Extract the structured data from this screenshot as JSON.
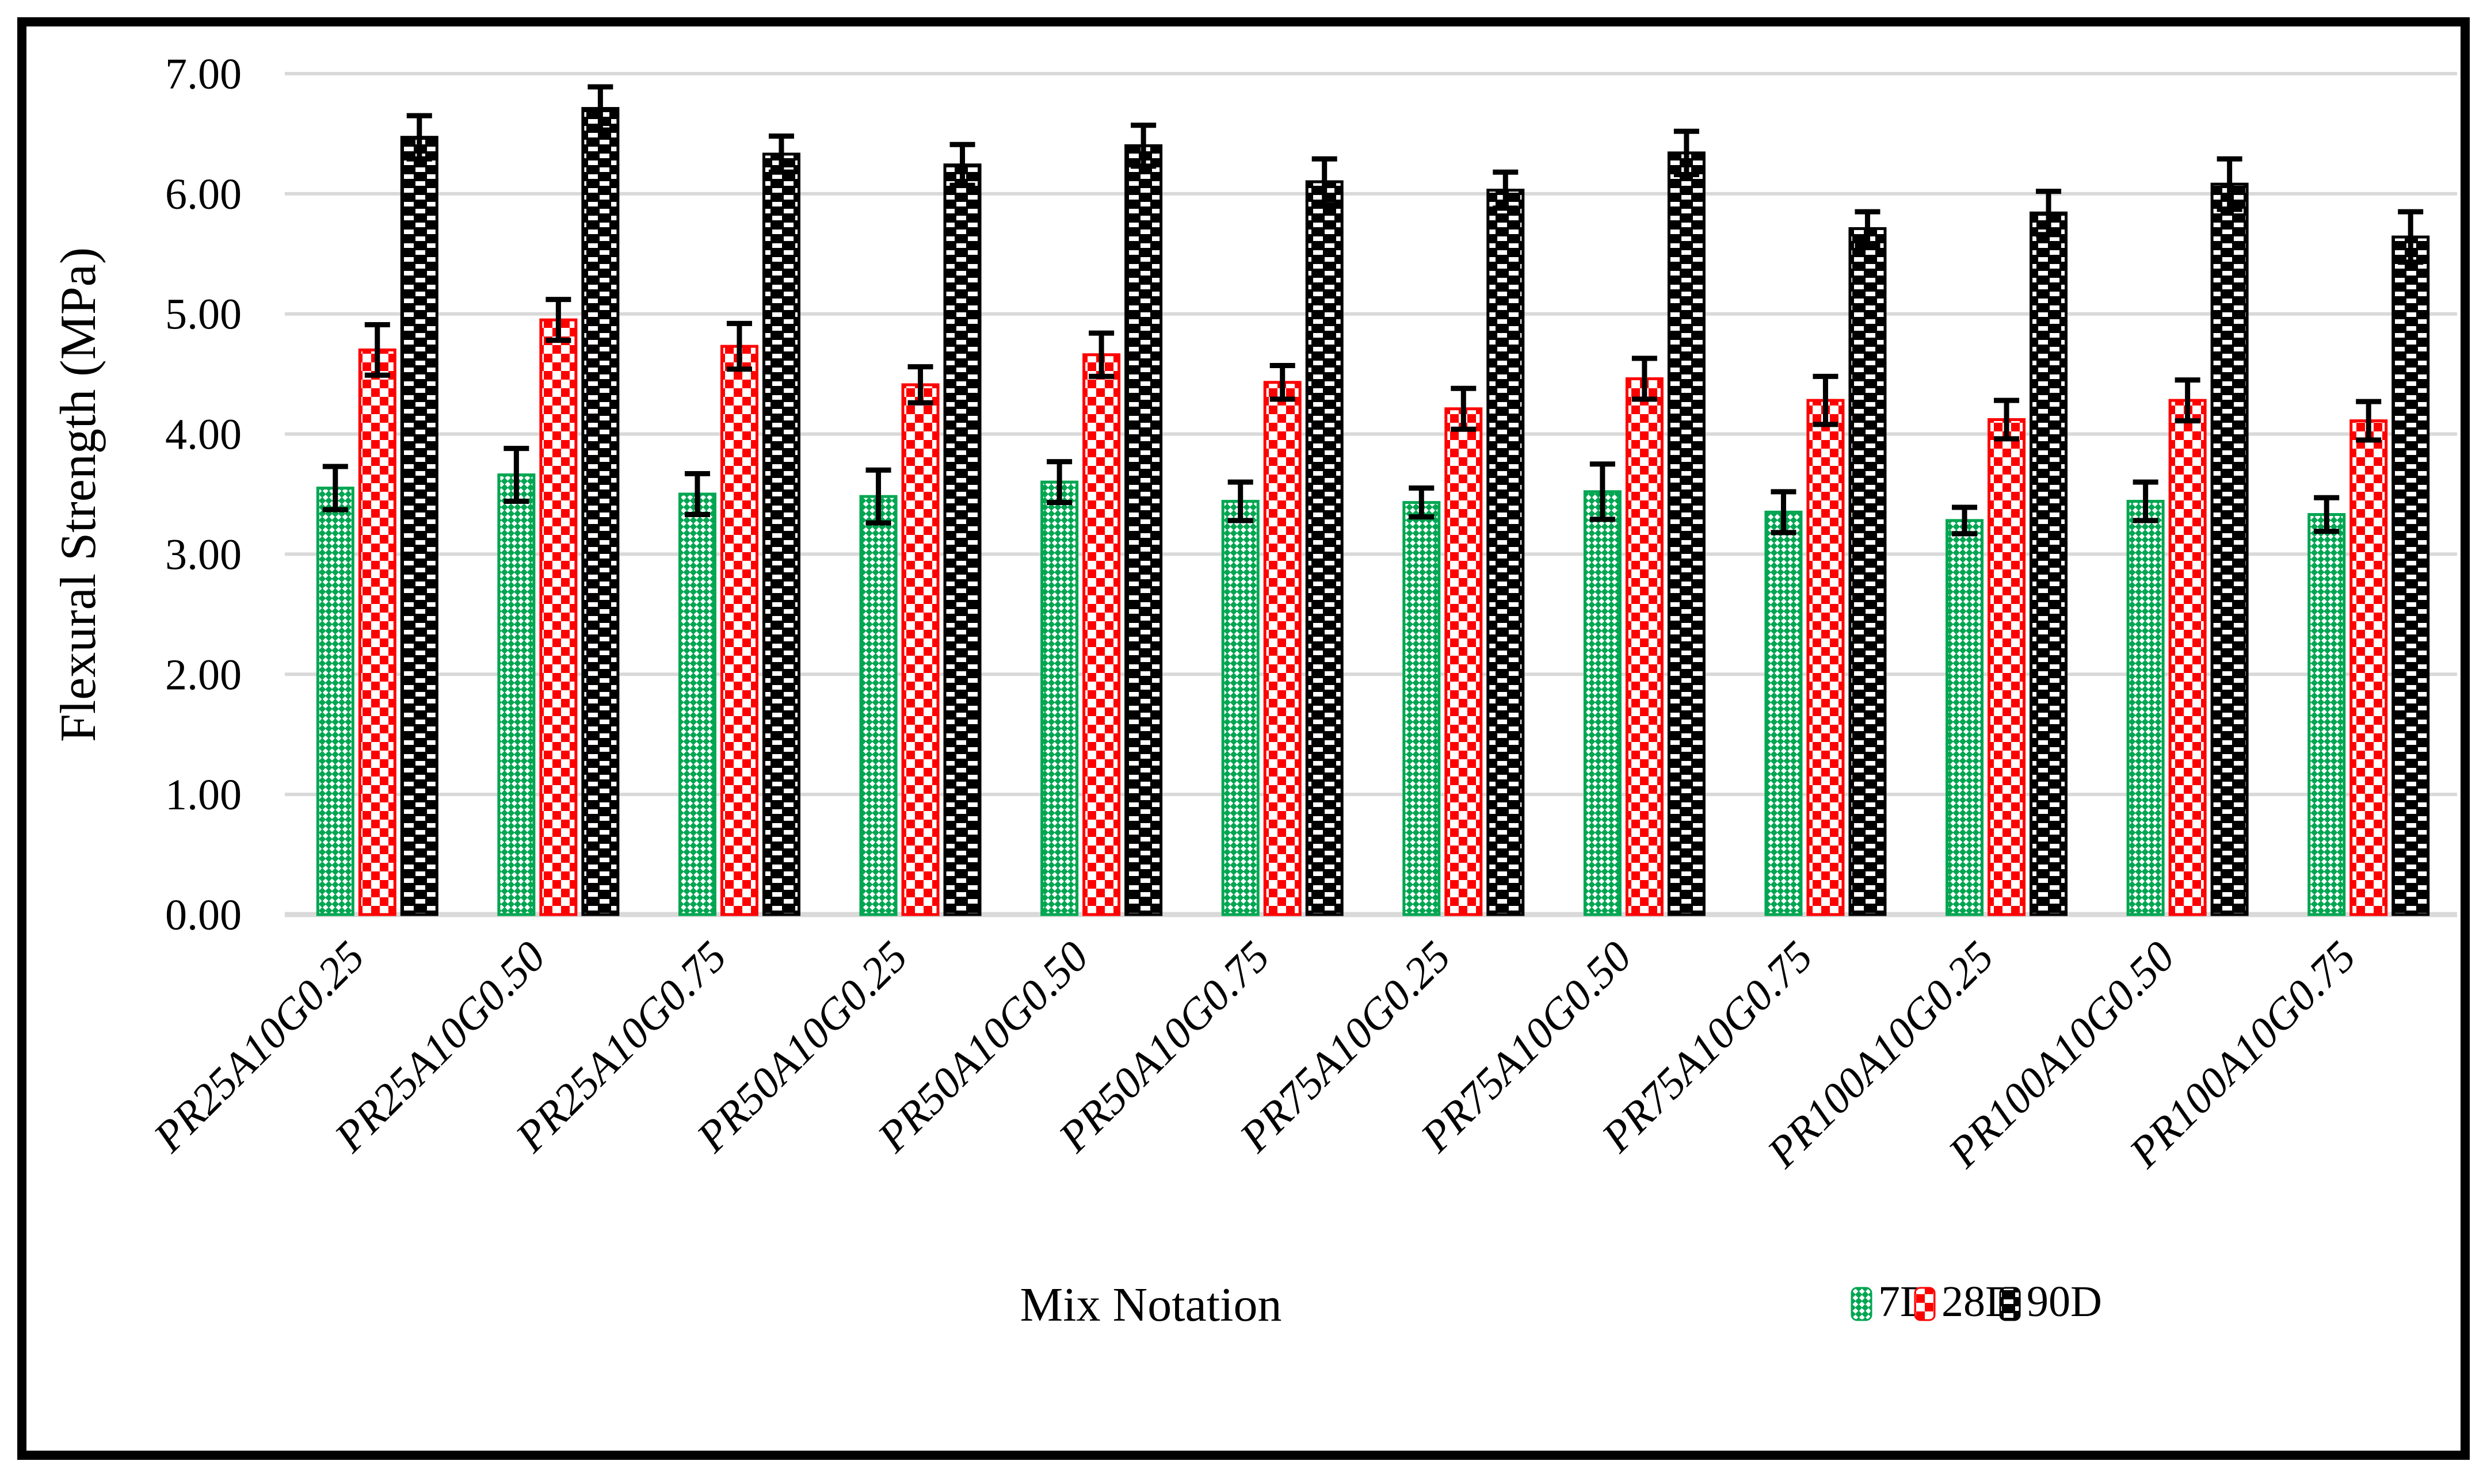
{
  "figure": {
    "background": "#ffffff",
    "frame_color": "#000000"
  },
  "chart_data": {
    "type": "bar",
    "title": "",
    "xlabel": "Mix Notation",
    "ylabel": "Flexural Strength (MPa)",
    "ylim": [
      0,
      7
    ],
    "ytick_step": 1,
    "ytick_decimals": 2,
    "grid": true,
    "gridline_color": "#d9d9d9",
    "error_bar_color": "#000000",
    "legend_position": "bottom-right",
    "legend_labels": [
      "7D",
      "28D",
      "90D"
    ],
    "categories": [
      "PR25A10G0.25",
      "PR25A10G0.50",
      "PR25A10G0.75",
      "PR50A10G0.25",
      "PR50A10G0.50",
      "PR50A10G0.75",
      "PR75A10G0.25",
      "PR75A10G0.50",
      "PR75A10G0.75",
      "PR100A10G0.25",
      "PR100A10G0.50",
      "PR100A10G0.75"
    ],
    "series": [
      {
        "name": "7D",
        "color": "#00A651",
        "pattern": "diagonal-checker",
        "values": [
          3.55,
          3.66,
          3.5,
          3.48,
          3.6,
          3.44,
          3.43,
          3.52,
          3.35,
          3.28,
          3.44,
          3.33
        ],
        "errors": [
          0.18,
          0.22,
          0.17,
          0.22,
          0.17,
          0.16,
          0.12,
          0.23,
          0.17,
          0.11,
          0.16,
          0.14
        ]
      },
      {
        "name": "28D",
        "color": "#FF0000",
        "pattern": "checkerboard",
        "values": [
          4.7,
          4.95,
          4.73,
          4.41,
          4.66,
          4.43,
          4.21,
          4.46,
          4.28,
          4.12,
          4.28,
          4.11
        ],
        "errors": [
          0.21,
          0.17,
          0.19,
          0.15,
          0.18,
          0.14,
          0.17,
          0.17,
          0.2,
          0.16,
          0.17,
          0.16
        ]
      },
      {
        "name": "90D",
        "color": "#000000",
        "pattern": "dashed-bricks",
        "values": [
          6.47,
          6.71,
          6.33,
          6.24,
          6.4,
          6.1,
          6.03,
          6.34,
          5.71,
          5.84,
          6.08,
          5.64
        ],
        "errors": [
          0.18,
          0.18,
          0.15,
          0.17,
          0.17,
          0.19,
          0.15,
          0.18,
          0.14,
          0.18,
          0.21,
          0.21
        ]
      }
    ]
  }
}
